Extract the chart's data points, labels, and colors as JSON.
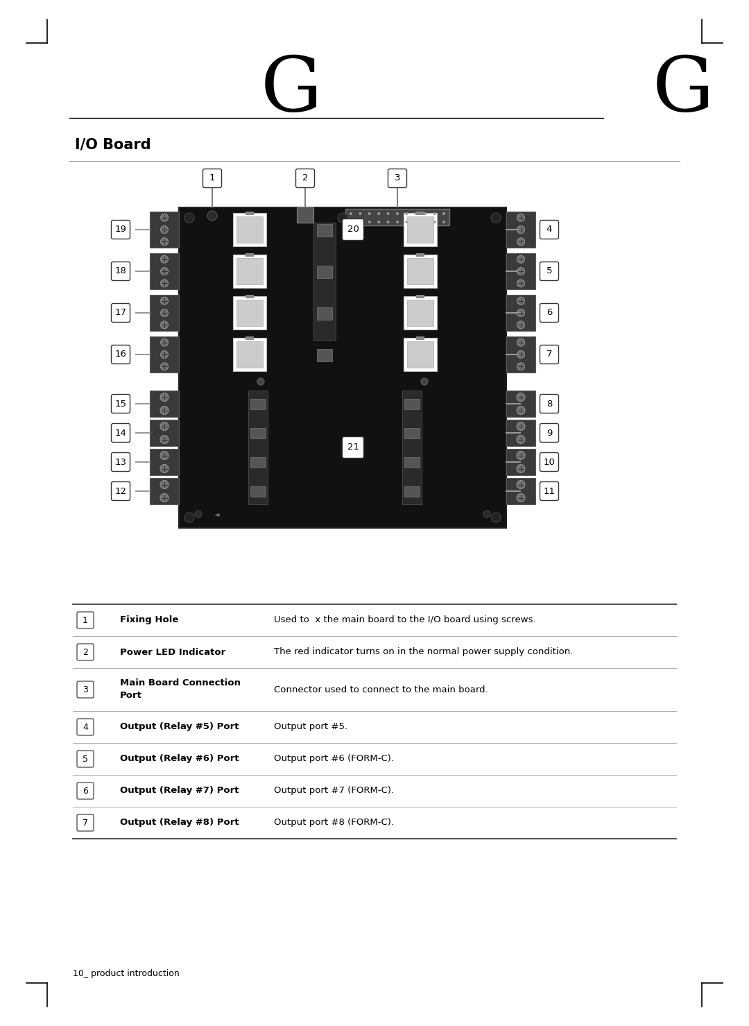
{
  "page_bg": "#ffffff",
  "chapter_letter": "G",
  "section_title": "I/O Board",
  "footer_text": "10_ product introduction",
  "table_rows": [
    {
      "num": "1",
      "label": "Fixing Hole",
      "desc": "Used to  x the main board to the I/O board using screws."
    },
    {
      "num": "2",
      "label": "Power LED Indicator",
      "desc": "The red indicator turns on in the normal power supply condition."
    },
    {
      "num": "3",
      "label": "Main Board Connection\nPort",
      "desc": "Connector used to connect to the main board."
    },
    {
      "num": "4",
      "label": "Output (Relay #5) Port",
      "desc": "Output port #5."
    },
    {
      "num": "5",
      "label": "Output (Relay #6) Port",
      "desc": "Output port #6 (FORM-C)."
    },
    {
      "num": "6",
      "label": "Output (Relay #7) Port",
      "desc": "Output port #7 (FORM-C)."
    },
    {
      "num": "7",
      "label": "Output (Relay #8) Port",
      "desc": "Output port #8 (FORM-C)."
    }
  ],
  "board_labels_left": [
    "19",
    "18",
    "17",
    "16",
    "15",
    "14",
    "13",
    "12"
  ],
  "board_labels_right": [
    "4",
    "5",
    "6",
    "7",
    "8",
    "9",
    "10",
    "11"
  ]
}
